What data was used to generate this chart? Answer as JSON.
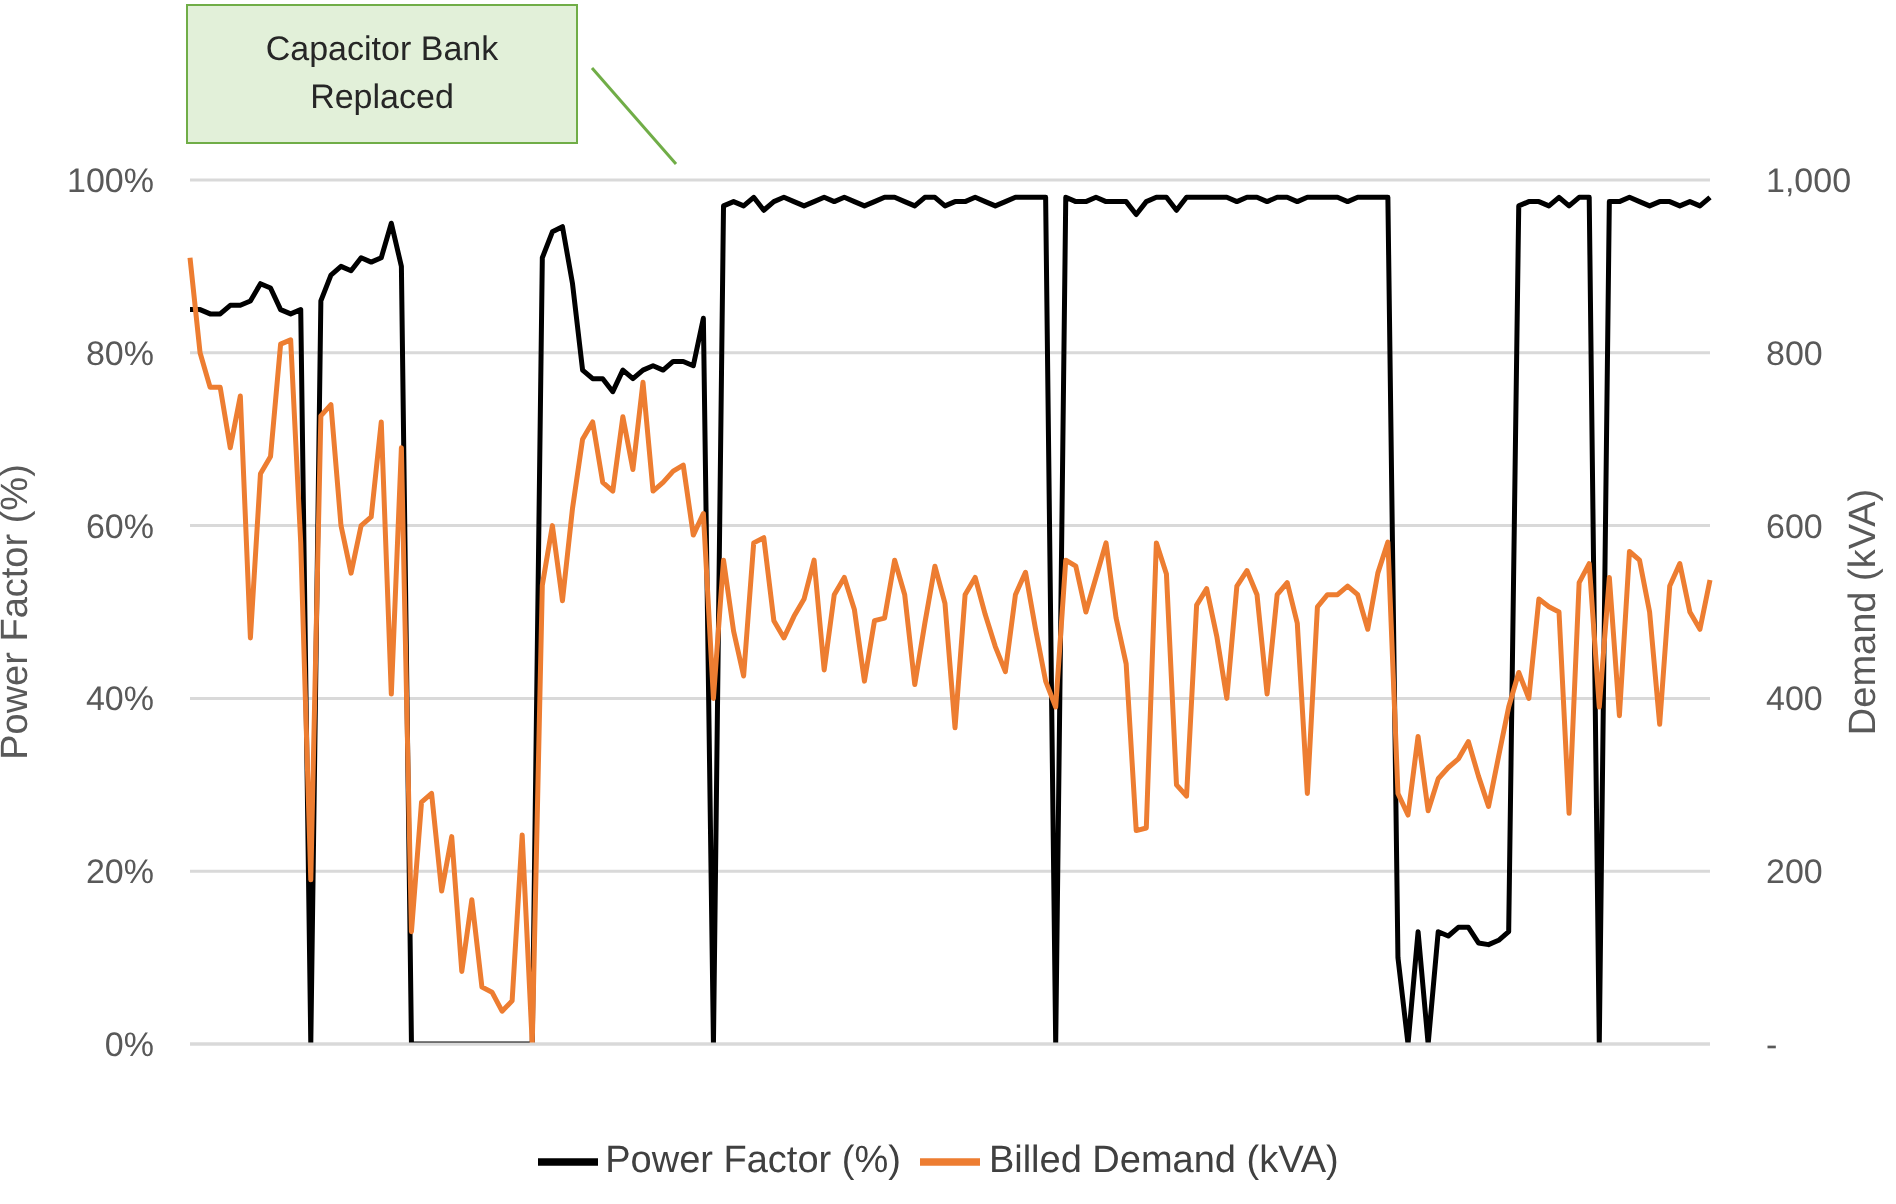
{
  "chart_data": {
    "type": "line",
    "ylabel": "Power Factor (%)",
    "y2label": "Demand (kVA)",
    "categories": [
      null,
      null,
      null,
      null,
      null,
      null,
      null,
      null,
      null,
      null,
      null,
      null,
      null,
      null,
      null,
      null,
      null,
      null,
      null,
      null,
      null,
      null,
      null,
      null,
      null,
      null,
      null,
      null,
      null,
      null,
      null,
      null,
      null,
      null,
      null,
      null,
      null,
      null,
      null,
      null,
      null,
      null,
      null,
      null,
      null,
      null,
      null,
      null,
      null,
      null,
      null,
      null,
      null,
      null,
      null,
      null,
      null,
      null,
      null,
      null,
      null,
      null,
      null,
      null,
      null,
      null,
      null,
      null,
      null,
      null,
      null,
      null,
      null,
      null,
      null,
      null,
      null,
      null,
      null,
      null,
      null,
      null,
      null,
      null,
      null,
      null,
      null,
      null,
      null,
      null,
      null,
      null,
      null,
      null,
      null,
      null,
      null,
      null,
      null,
      null,
      null,
      null,
      null,
      null,
      null,
      null,
      null,
      null,
      null,
      null,
      null,
      null,
      null,
      null,
      null,
      null,
      null,
      null,
      null,
      null,
      null,
      null,
      null,
      null,
      null,
      null,
      null,
      null,
      null,
      null,
      null,
      null,
      null,
      null,
      null,
      null,
      null,
      null,
      null,
      null,
      null,
      null,
      null,
      null,
      null,
      null,
      null,
      null,
      null,
      null,
      null,
      null
    ],
    "series": [
      {
        "name": "Power Factor (%)",
        "color": "#000000",
        "values": [
          85,
          85,
          84.5,
          84.5,
          85.5,
          85.5,
          86,
          88,
          87.5,
          85,
          84.5,
          85,
          0,
          86,
          89,
          90,
          89.5,
          91,
          90.5,
          91,
          95,
          90,
          0,
          0,
          0,
          0,
          0,
          0,
          0,
          0,
          0,
          0,
          0,
          0,
          0,
          91,
          94,
          94.6,
          88,
          78,
          77,
          77,
          75.5,
          78,
          77,
          78,
          78.5,
          78,
          79,
          79,
          78.5,
          84,
          0,
          97,
          97.5,
          97,
          98,
          96.5,
          97.5,
          98,
          97.5,
          97,
          97.5,
          98,
          97.5,
          98,
          97.5,
          97,
          97.5,
          98,
          98,
          97.5,
          97,
          98,
          98,
          97,
          97.5,
          97.5,
          98,
          97.5,
          97,
          97.5,
          98,
          98,
          98,
          98,
          0,
          98,
          97.5,
          97.5,
          98,
          97.5,
          97.5,
          97.5,
          96,
          97.5,
          98,
          98,
          96.5,
          98,
          98,
          98,
          98,
          98,
          97.5,
          98,
          98,
          97.5,
          98,
          98,
          97.5,
          98,
          98,
          98,
          98,
          97.5,
          98,
          98,
          98,
          98,
          10,
          0,
          13,
          0,
          13,
          12.5,
          13.5,
          13.5,
          11.7,
          11.5,
          12,
          13,
          97,
          97.5,
          97.5,
          97,
          98,
          97,
          98,
          98,
          0,
          97.5,
          97.5,
          98,
          97.5,
          97,
          97.5,
          97.5,
          97,
          97.5,
          97,
          98
        ]
      },
      {
        "name": "Billed Demand (kVA)",
        "color": "#ed7d31",
        "axis": "y2",
        "values": [
          910,
          800,
          760,
          760,
          690,
          750,
          470,
          660,
          680,
          810,
          815,
          580,
          190,
          727,
          740,
          600,
          545,
          600,
          610,
          720,
          405,
          690,
          130,
          280,
          290,
          177,
          240,
          84,
          167,
          66,
          60,
          38,
          50,
          242,
          0,
          531,
          600,
          513,
          620,
          700,
          720,
          650,
          640,
          726,
          665,
          766,
          640,
          650,
          663,
          670,
          589,
          614,
          400,
          560,
          478,
          426,
          580,
          586,
          490,
          470,
          495,
          515,
          560,
          433,
          520,
          540,
          503,
          420,
          490,
          493,
          560,
          520,
          416,
          487,
          553,
          510,
          366,
          520,
          540,
          497,
          460,
          431,
          520,
          546,
          480,
          420,
          390,
          560,
          553,
          500,
          540,
          580,
          493,
          440,
          247,
          250,
          580,
          544,
          300,
          287,
          508,
          527,
          472,
          400,
          530,
          548,
          520,
          405,
          520,
          534,
          487,
          290,
          506,
          520,
          520,
          530,
          520,
          480,
          545,
          581,
          290,
          265,
          356,
          270,
          307,
          320,
          330,
          350,
          310,
          275,
          333,
          390,
          430,
          400,
          515,
          506,
          500,
          267,
          534,
          556,
          390,
          540,
          380,
          570,
          560,
          500,
          370,
          530,
          556,
          500,
          480,
          537
        ]
      }
    ],
    "ylim": [
      0,
      100
    ],
    "yticks": [
      {
        "value": 0,
        "label": "0%"
      },
      {
        "value": 20,
        "label": "20%"
      },
      {
        "value": 40,
        "label": "40%"
      },
      {
        "value": 60,
        "label": "60%"
      },
      {
        "value": 80,
        "label": "80%"
      },
      {
        "value": 100,
        "label": "100%"
      }
    ],
    "y2lim": [
      0,
      1000
    ],
    "y2ticks": [
      {
        "value": 0,
        "label": "-"
      },
      200,
      400,
      600,
      800,
      {
        "value": 1000,
        "label": "1,000"
      }
    ],
    "grid": "y",
    "legend": "bottom",
    "marker": "none",
    "annotations": [
      "Capacitor Bank Replaced"
    ]
  }
}
